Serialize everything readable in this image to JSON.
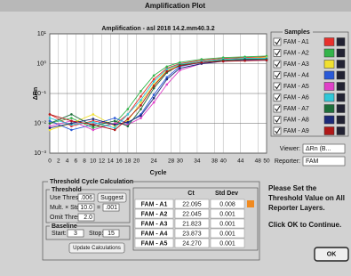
{
  "window": {
    "title": "Amplification Plot"
  },
  "chart_data": {
    "type": "line",
    "title": "Amplification - asl 2018 14.2.mm40.3.2",
    "ylabel": "ΔRn",
    "xlabel": "Cycle",
    "x": [
      0,
      5,
      10,
      15,
      18,
      21,
      24,
      27,
      30,
      35,
      40,
      45,
      50
    ],
    "series": [
      {
        "name": "FAM - A1",
        "color": "#e8302c",
        "values": [
          0.02,
          0.008,
          0.012,
          0.009,
          0.02,
          0.08,
          0.3,
          0.7,
          1.0,
          1.3,
          1.5,
          1.6,
          1.7
        ]
      },
      {
        "name": "FAM - A2",
        "color": "#34b44a",
        "values": [
          0.01,
          0.015,
          0.007,
          0.01,
          0.03,
          0.12,
          0.4,
          0.8,
          1.1,
          1.4,
          1.6,
          1.7,
          1.8
        ]
      },
      {
        "name": "FAM - A3",
        "color": "#f0e030",
        "values": [
          0.006,
          0.01,
          0.02,
          0.008,
          0.012,
          0.05,
          0.2,
          0.6,
          0.9,
          1.2,
          1.4,
          1.5,
          1.6
        ]
      },
      {
        "name": "FAM - A4",
        "color": "#2a5ad8",
        "values": [
          0.012,
          0.006,
          0.009,
          0.015,
          0.01,
          0.02,
          0.09,
          0.35,
          0.8,
          1.1,
          1.3,
          1.4,
          1.5
        ]
      },
      {
        "name": "FAM - A5",
        "color": "#e040c8",
        "values": [
          0.008,
          0.012,
          0.006,
          0.01,
          0.009,
          0.015,
          0.05,
          0.2,
          0.6,
          1.0,
          1.2,
          1.3,
          1.4
        ]
      },
      {
        "name": "FAM - A6",
        "color": "#30c8d8",
        "values": [
          0.015,
          0.009,
          0.011,
          0.007,
          0.02,
          0.06,
          0.25,
          0.65,
          0.95,
          1.2,
          1.4,
          1.5,
          1.5
        ]
      },
      {
        "name": "FAM - A7",
        "color": "#1e6e3a",
        "values": [
          0.01,
          0.02,
          0.008,
          0.012,
          0.008,
          0.03,
          0.15,
          0.5,
          0.9,
          1.1,
          1.3,
          1.4,
          1.4
        ]
      },
      {
        "name": "FAM - A8",
        "color": "#1c2a78",
        "values": [
          0.007,
          0.01,
          0.014,
          0.009,
          0.011,
          0.018,
          0.07,
          0.3,
          0.7,
          1.0,
          1.2,
          1.3,
          1.3
        ]
      },
      {
        "name": "FAM - A9",
        "color": "#b01818",
        "values": [
          0.02,
          0.012,
          0.009,
          0.006,
          0.014,
          0.04,
          0.18,
          0.55,
          0.85,
          1.1,
          1.2,
          1.25,
          1.3
        ]
      }
    ],
    "xlim": [
      0,
      50
    ],
    "ylim": [
      0.001,
      10
    ],
    "log_y": true,
    "grid": true,
    "xticks": [
      0,
      2,
      4,
      6,
      8,
      10,
      12,
      14,
      16,
      18,
      20,
      24,
      28,
      30,
      34,
      38,
      40,
      44,
      48,
      50
    ],
    "yticks": [
      {
        "value": 10,
        "label": "10¹"
      },
      {
        "value": 1,
        "label": "10⁰"
      },
      {
        "value": 0.1,
        "label": "10⁻¹"
      },
      {
        "value": 0.01,
        "label": "10⁻²"
      },
      {
        "value": 0.001,
        "label": "10⁻³"
      }
    ]
  },
  "samples": {
    "title": "Samples"
  },
  "viewer": {
    "label": "Viewer:",
    "value": "ΔRn (B..."
  },
  "reporter": {
    "label": "Reporter:",
    "value": "FAM"
  },
  "threshold_panel": {
    "title": "Threshold Cycle Calculation",
    "threshold": {
      "title": "Threshold",
      "use_label": "Use Threshold:",
      "use_value": ".006",
      "suggest": "Suggest",
      "mult_label": "Mult. × Stddev:",
      "mult_value": "10.0",
      "equals": "=",
      "mult_result": ".001",
      "ct_label": "Omit Threshold:",
      "ct_value": "2.0"
    },
    "baseline": {
      "title": "Baseline",
      "start_label": "Start:",
      "start_value": "3",
      "stop_label": "Stop:",
      "stop_value": "15"
    },
    "update": "Update Calculations"
  },
  "table": {
    "columns": [
      "Ct",
      "Std Dev"
    ],
    "rows": [
      [
        "FAM - A1",
        "22.095",
        "0.008"
      ],
      [
        "FAM - A2",
        "22.045",
        "0.001"
      ],
      [
        "FAM - A3",
        "21.823",
        "0.001"
      ],
      [
        "FAM - A4",
        "23.873",
        "0.001"
      ],
      [
        "FAM - A5",
        "24.270",
        "0.001"
      ]
    ]
  },
  "message": [
    "Please Set the",
    "Threshold Value on All",
    "Reporter Layers.",
    "Click OK to Continue."
  ],
  "ok": "OK"
}
